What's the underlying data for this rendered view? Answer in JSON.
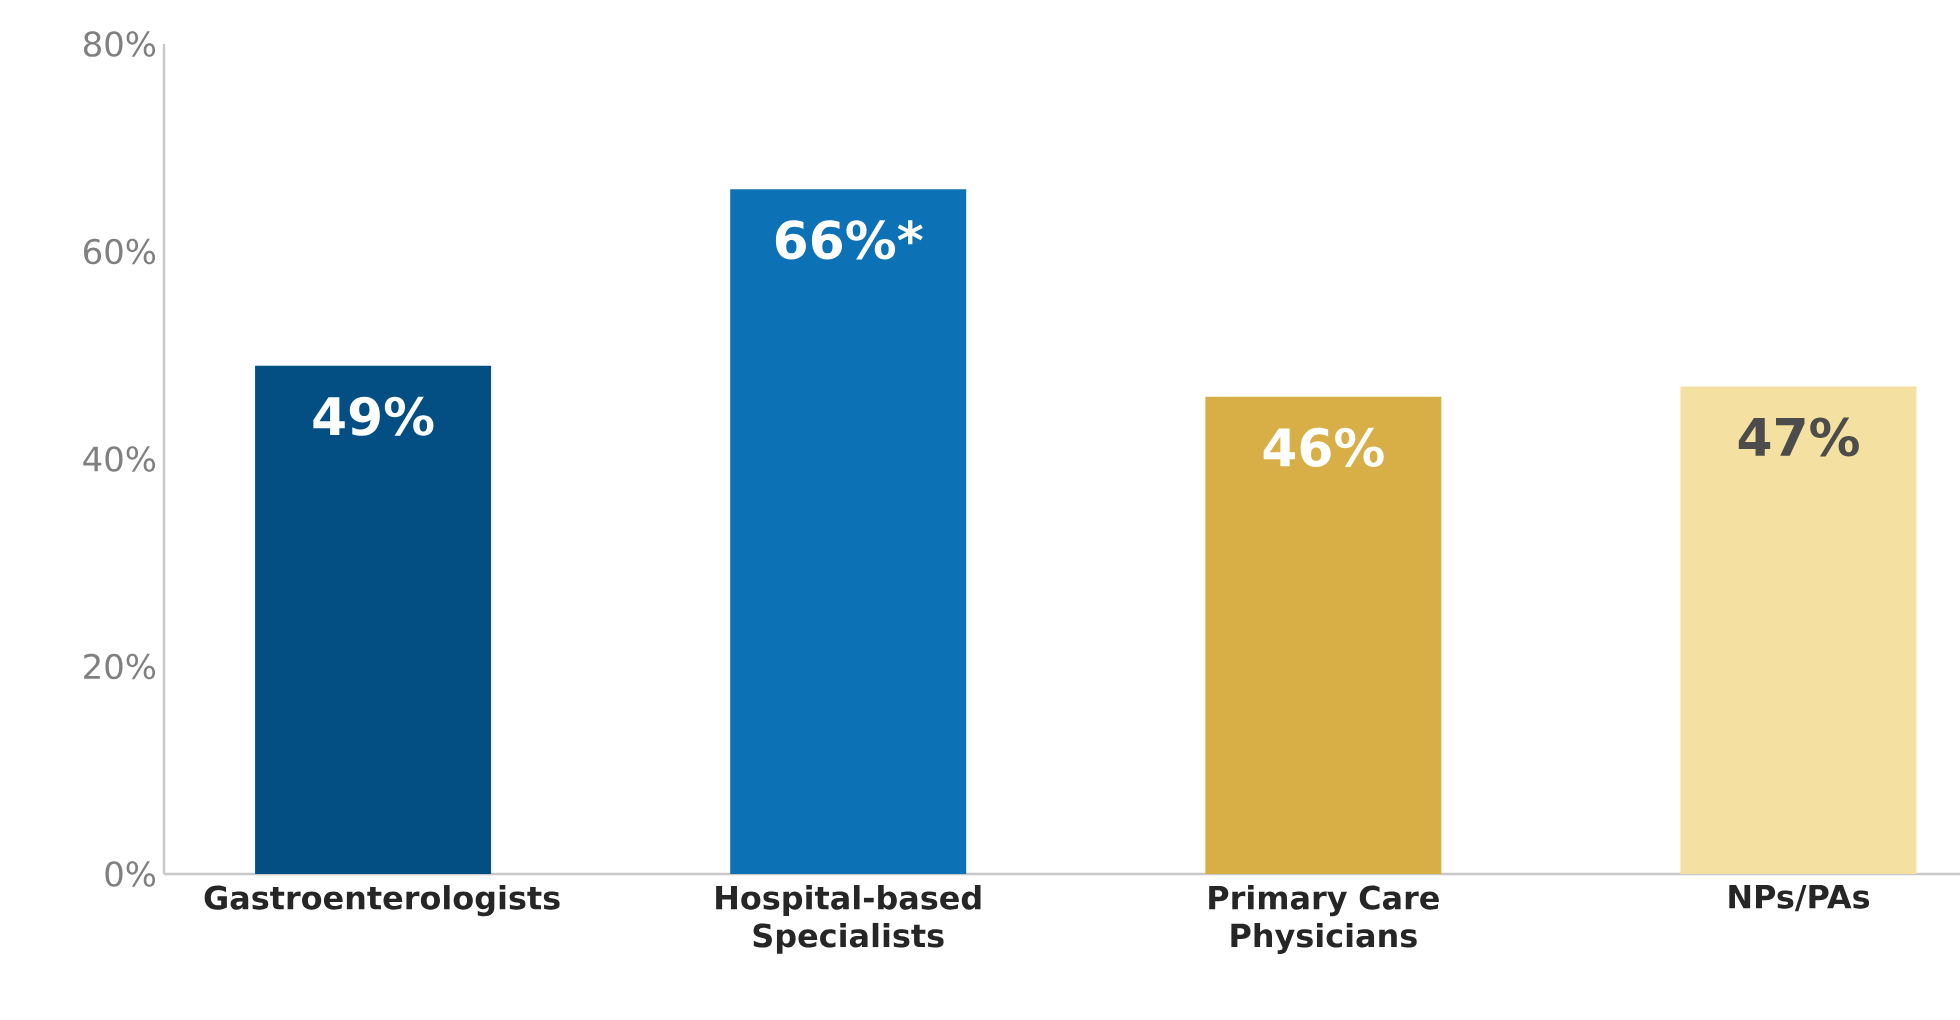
{
  "chart_data": {
    "type": "bar",
    "categories": [
      "Gastroenterologists",
      "Hospital-based Specialists",
      "Primary Care Physicians",
      "NPs/PAs"
    ],
    "values": [
      49,
      66,
      46,
      47
    ],
    "colors": [
      "#034f84",
      "#0c72b5",
      "#d8ae46",
      "#f4e0a0"
    ],
    "value_labels": [
      "49%",
      "66%*",
      "46%",
      "47%"
    ],
    "ylim": [
      0,
      80
    ],
    "yticks": [
      {
        "value": 0,
        "label": "0%"
      },
      {
        "value": 20,
        "label": "20%"
      },
      {
        "value": 40,
        "label": "40%"
      },
      {
        "value": 60,
        "label": "60%"
      },
      {
        "value": 80,
        "label": "80%"
      }
    ],
    "grid": false
  }
}
